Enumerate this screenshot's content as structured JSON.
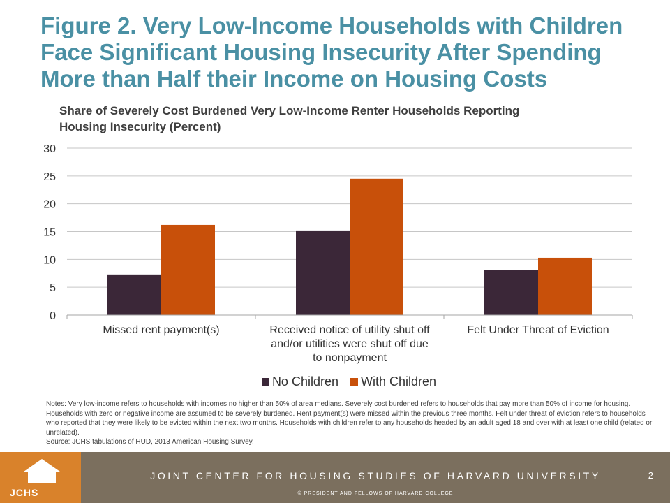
{
  "title": "Figure 2. Very Low-Income Households with Children Face Significant Housing Insecurity After Spending More than Half their Income on Housing Costs",
  "chart_data": {
    "type": "bar",
    "title": "Share of Severely Cost Burdened Very Low-Income Renter Households Reporting Housing Insecurity (Percent)",
    "categories": [
      [
        "Missed rent payment(s)"
      ],
      [
        "Received notice of utility shut off",
        "and/or utilities were shut off due",
        "to nonpayment"
      ],
      [
        "Felt Under Threat of Eviction"
      ]
    ],
    "series": [
      {
        "name": "No Children",
        "color": "#3b2738",
        "values": [
          7.3,
          15.2,
          8.1
        ]
      },
      {
        "name": "With Children",
        "color": "#c8500a",
        "values": [
          16.2,
          24.5,
          10.3
        ]
      }
    ],
    "ylim": [
      0,
      30
    ],
    "yticks": [
      0,
      5,
      10,
      15,
      20,
      25,
      30
    ],
    "grid": true,
    "legend_position": "bottom",
    "xlabel": "",
    "ylabel": ""
  },
  "notes": "Notes: Very low-income refers to households with incomes no higher than 50% of area medians. Severely cost burdened refers to households that pay more than 50% of income for housing. Households with zero or negative income are assumed to be severely burdened. Rent payment(s) were missed within the previous three months. Felt under threat of eviction refers to households who reported that they were likely to be evicted within the next two months. Households with children refer to any households headed by an adult aged 18 and over with at least one child (related or unrelated).",
  "source": "Source: JCHS tabulations of HUD, 2013 American Housing Survey.",
  "footer": {
    "logo_text": "JCHS",
    "org_name": "JOINT CENTER FOR HOUSING STUDIES OF HARVARD UNIVERSITY",
    "page_number": "2",
    "copyright": "© PRESIDENT AND FELLOWS OF HARVARD COLLEGE"
  },
  "colors": {
    "title": "#4a90a4",
    "footer_bar": "#7b6f5e",
    "logo_bg": "#d9822b"
  },
  "icons": {
    "logo": "house-icon"
  }
}
